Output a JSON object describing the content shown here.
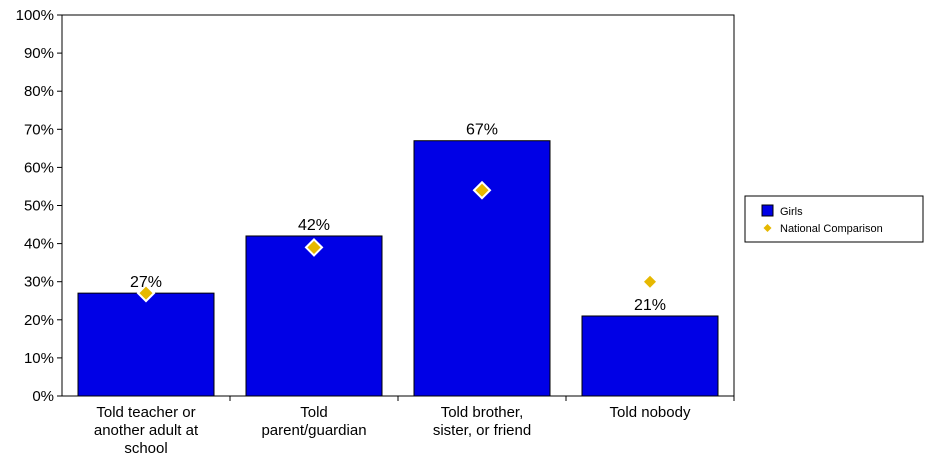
{
  "chart_data": {
    "type": "bar",
    "categories": [
      [
        "Told teacher or",
        "another adult at",
        "school"
      ],
      [
        "Told",
        "parent/guardian"
      ],
      [
        "Told brother,",
        "sister, or friend"
      ],
      [
        "Told nobody"
      ]
    ],
    "series": [
      {
        "name": "Girls",
        "kind": "bar",
        "color": "#0000e6",
        "values": [
          27,
          42,
          67,
          21
        ],
        "labels": [
          "27%",
          "42%",
          "67%",
          "21%"
        ]
      },
      {
        "name": "National Comparison",
        "kind": "marker",
        "marker": "diamond",
        "color": "#e6b800",
        "values": [
          27,
          39,
          54,
          30
        ]
      }
    ],
    "ylim": [
      0,
      100
    ],
    "yticks": [
      "0%",
      "10%",
      "20%",
      "30%",
      "40%",
      "50%",
      "60%",
      "70%",
      "80%",
      "90%",
      "100%"
    ],
    "legend_position": "right",
    "grid": false
  }
}
